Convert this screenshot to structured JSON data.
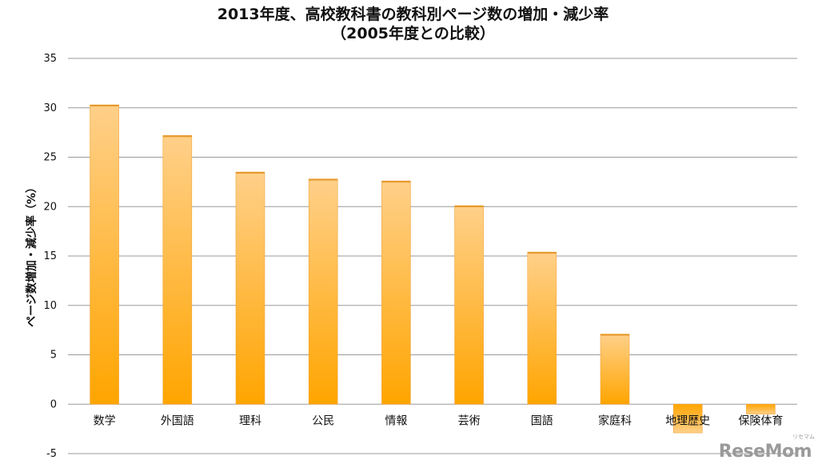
{
  "chart_data": {
    "type": "bar",
    "title": "2013年度、高校教科書の教科別ページ数の増加・減少率",
    "subtitle": "（2005年度との比較）",
    "xlabel": "",
    "ylabel": "ページ数増加・減少率（%）",
    "categories": [
      "数学",
      "外国語",
      "理科",
      "公民",
      "情報",
      "芸術",
      "国語",
      "家庭科",
      "地理歴史",
      "保険体育"
    ],
    "values": [
      30.3,
      27.2,
      23.5,
      22.8,
      22.6,
      20.1,
      15.4,
      7.1,
      -2.9,
      -1.0
    ],
    "ylim": [
      -5,
      35
    ],
    "yticks": [
      -5,
      0,
      5,
      10,
      15,
      20,
      25,
      30,
      35
    ],
    "grid": true,
    "legend": "none",
    "colors": {
      "bar_top": "#ffd08a",
      "bar_bottom": "#ffa500",
      "bar_edge": "#f0a43a",
      "grid": "#9a9a9a",
      "axis_text": "#111111"
    }
  },
  "watermark": {
    "text": "ReseMom",
    "sub": "リセマム"
  }
}
